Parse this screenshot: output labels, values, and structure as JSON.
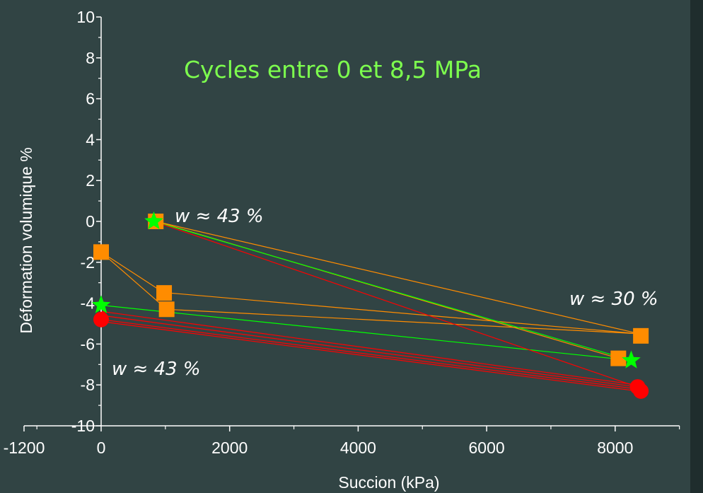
{
  "chart_data": {
    "type": "scatter",
    "title": "Cycles entre 0 et 8,5 MPa",
    "xlabel": "Succion (kPa)",
    "ylabel": "Déformation volumique %",
    "xlim": [
      -1200,
      9000
    ],
    "ylim": [
      -10,
      10
    ],
    "x_ticks": [
      "-1200",
      "0",
      "2000",
      "4000",
      "6000",
      "8000"
    ],
    "y_ticks": [
      "10",
      "8",
      "6",
      "4",
      "2",
      "0",
      "-2",
      "-4",
      "-6",
      "-8",
      "-10"
    ],
    "annotations": [
      {
        "id": "w43-top",
        "text": "w ≈ 43 %"
      },
      {
        "id": "w30",
        "text": "w ≈ 30 %"
      },
      {
        "id": "w43-bottom",
        "text": "w ≈ 43 %"
      }
    ],
    "series": [
      {
        "marker": "square",
        "color": "#ff8c00",
        "points": [
          {
            "x": 850,
            "y": 0.0
          },
          {
            "x": 0,
            "y": -1.5
          },
          {
            "x": 980,
            "y": -3.5
          },
          {
            "x": 1020,
            "y": -4.3
          },
          {
            "x": 8050,
            "y": -6.7
          },
          {
            "x": 8400,
            "y": -5.6
          }
        ],
        "paths": [
          [
            [
              850,
              0.0
            ],
            [
              8380,
              -5.5
            ]
          ],
          [
            [
              8380,
              -5.5
            ],
            [
              1050,
              -3.5
            ]
          ],
          [
            [
              0,
              -1.5
            ],
            [
              980,
              -3.5
            ]
          ],
          [
            [
              0,
              -1.5
            ],
            [
              1020,
              -4.3
            ]
          ],
          [
            [
              1020,
              -4.3
            ],
            [
              8380,
              -5.5
            ]
          ],
          [
            [
              850,
              0.0
            ],
            [
              8050,
              -6.7
            ]
          ]
        ]
      },
      {
        "marker": "star",
        "color": "#00ff00",
        "points": [
          {
            "x": 820,
            "y": 0.0
          },
          {
            "x": 0,
            "y": -4.1
          },
          {
            "x": 8250,
            "y": -6.8
          }
        ],
        "paths": [
          [
            [
              820,
              0.0
            ],
            [
              8250,
              -6.8
            ]
          ],
          [
            [
              0,
              -4.1
            ],
            [
              8250,
              -6.8
            ]
          ]
        ]
      },
      {
        "marker": "circle",
        "color": "#ff0000",
        "points": [
          {
            "x": 0,
            "y": -4.8
          },
          {
            "x": 8350,
            "y": -8.1
          },
          {
            "x": 8400,
            "y": -8.3
          }
        ],
        "paths": [
          [
            [
              820,
              0.0
            ],
            [
              8350,
              -8.1
            ]
          ],
          [
            [
              0,
              -4.4
            ],
            [
              8350,
              -8.0
            ]
          ],
          [
            [
              0,
              -4.6
            ],
            [
              8350,
              -8.1
            ]
          ],
          [
            [
              0,
              -4.8
            ],
            [
              8350,
              -8.2
            ]
          ],
          [
            [
              0,
              -4.9
            ],
            [
              8350,
              -8.3
            ]
          ]
        ]
      }
    ]
  }
}
